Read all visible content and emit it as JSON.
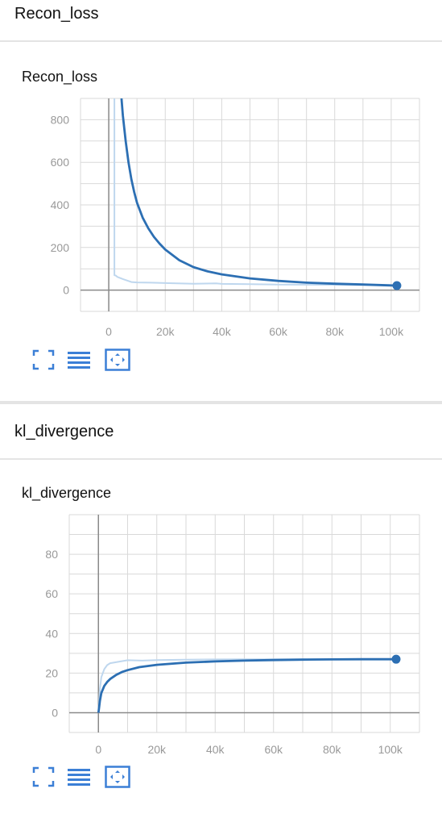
{
  "sections": [
    {
      "header": "Recon_loss",
      "card_title": "Recon_loss"
    },
    {
      "header": "kl_divergence",
      "card_title": "kl_divergence"
    }
  ],
  "toolbar": {
    "buttons": [
      "fullscreen-icon",
      "data-list-icon",
      "fit-domain-icon"
    ],
    "color": "#3b7fd6"
  },
  "chart_data": [
    {
      "type": "line",
      "title": "Recon_loss",
      "xlim": [
        -10000,
        110000
      ],
      "ylim": [
        -100,
        900
      ],
      "xticks": [
        0,
        20000,
        40000,
        60000,
        80000,
        100000
      ],
      "xtick_labels": [
        "0",
        "20k",
        "40k",
        "60k",
        "80k",
        "100k"
      ],
      "yticks": [
        0,
        200,
        400,
        600,
        800
      ],
      "ytick_labels": [
        "0",
        "200",
        "400",
        "600",
        "800"
      ],
      "grid": true,
      "series": [
        {
          "role": "raw",
          "color": "#bfd7ee",
          "x": [
            2000,
            2000,
            2500,
            3000,
            5000,
            8000,
            10000,
            15000,
            20000,
            30000,
            36000,
            38000,
            40000,
            50000,
            60000,
            80000,
            100000,
            102000
          ],
          "y": [
            900,
            70,
            68,
            62,
            52,
            38,
            36,
            35,
            33,
            30,
            31,
            32,
            29,
            28,
            26,
            25,
            23,
            22
          ]
        },
        {
          "role": "smoothed",
          "color": "#2c6fb3",
          "x": [
            4500,
            5000,
            6000,
            7000,
            8000,
            9000,
            10000,
            12000,
            14000,
            16000,
            18000,
            20000,
            25000,
            30000,
            35000,
            40000,
            50000,
            60000,
            70000,
            80000,
            90000,
            100000,
            102000
          ],
          "y": [
            900,
            820,
            700,
            600,
            520,
            460,
            410,
            340,
            290,
            250,
            218,
            190,
            140,
            108,
            88,
            74,
            55,
            43,
            35,
            30,
            26,
            22,
            21
          ],
          "end_marker": true
        }
      ]
    },
    {
      "type": "line",
      "title": "kl_divergence",
      "xlim": [
        -10000,
        110000
      ],
      "ylim": [
        -10,
        100
      ],
      "xticks": [
        0,
        20000,
        40000,
        60000,
        80000,
        100000
      ],
      "xtick_labels": [
        "0",
        "20k",
        "40k",
        "60k",
        "80k",
        "100k"
      ],
      "yticks": [
        0,
        20,
        40,
        60,
        80
      ],
      "ytick_labels": [
        "0",
        "20",
        "40",
        "60",
        "80"
      ],
      "grid": true,
      "series": [
        {
          "role": "raw",
          "color": "#bfd7ee",
          "x": [
            0,
            500,
            1000,
            2000,
            3000,
            4000,
            6000,
            8000,
            10000,
            15000,
            20000,
            30000,
            40000,
            50000,
            60000,
            70000,
            80000,
            90000,
            100000,
            102000
          ],
          "y": [
            0,
            12,
            18,
            22,
            24,
            25,
            25.5,
            26,
            26.5,
            26.3,
            26.6,
            26.8,
            26.9,
            27,
            27,
            27,
            27,
            27,
            27,
            27
          ],
          "end_marker": false
        },
        {
          "role": "smoothed",
          "color": "#2c6fb3",
          "x": [
            0,
            500,
            1000,
            2000,
            3000,
            4000,
            6000,
            8000,
            10000,
            14000,
            20000,
            30000,
            40000,
            50000,
            60000,
            70000,
            80000,
            90000,
            100000,
            102000
          ],
          "y": [
            0,
            6,
            10,
            13.5,
            15.5,
            17,
            19,
            20.5,
            21.5,
            23,
            24.2,
            25.3,
            25.9,
            26.3,
            26.6,
            26.8,
            26.9,
            27,
            27,
            27
          ],
          "end_marker": true
        }
      ]
    }
  ]
}
